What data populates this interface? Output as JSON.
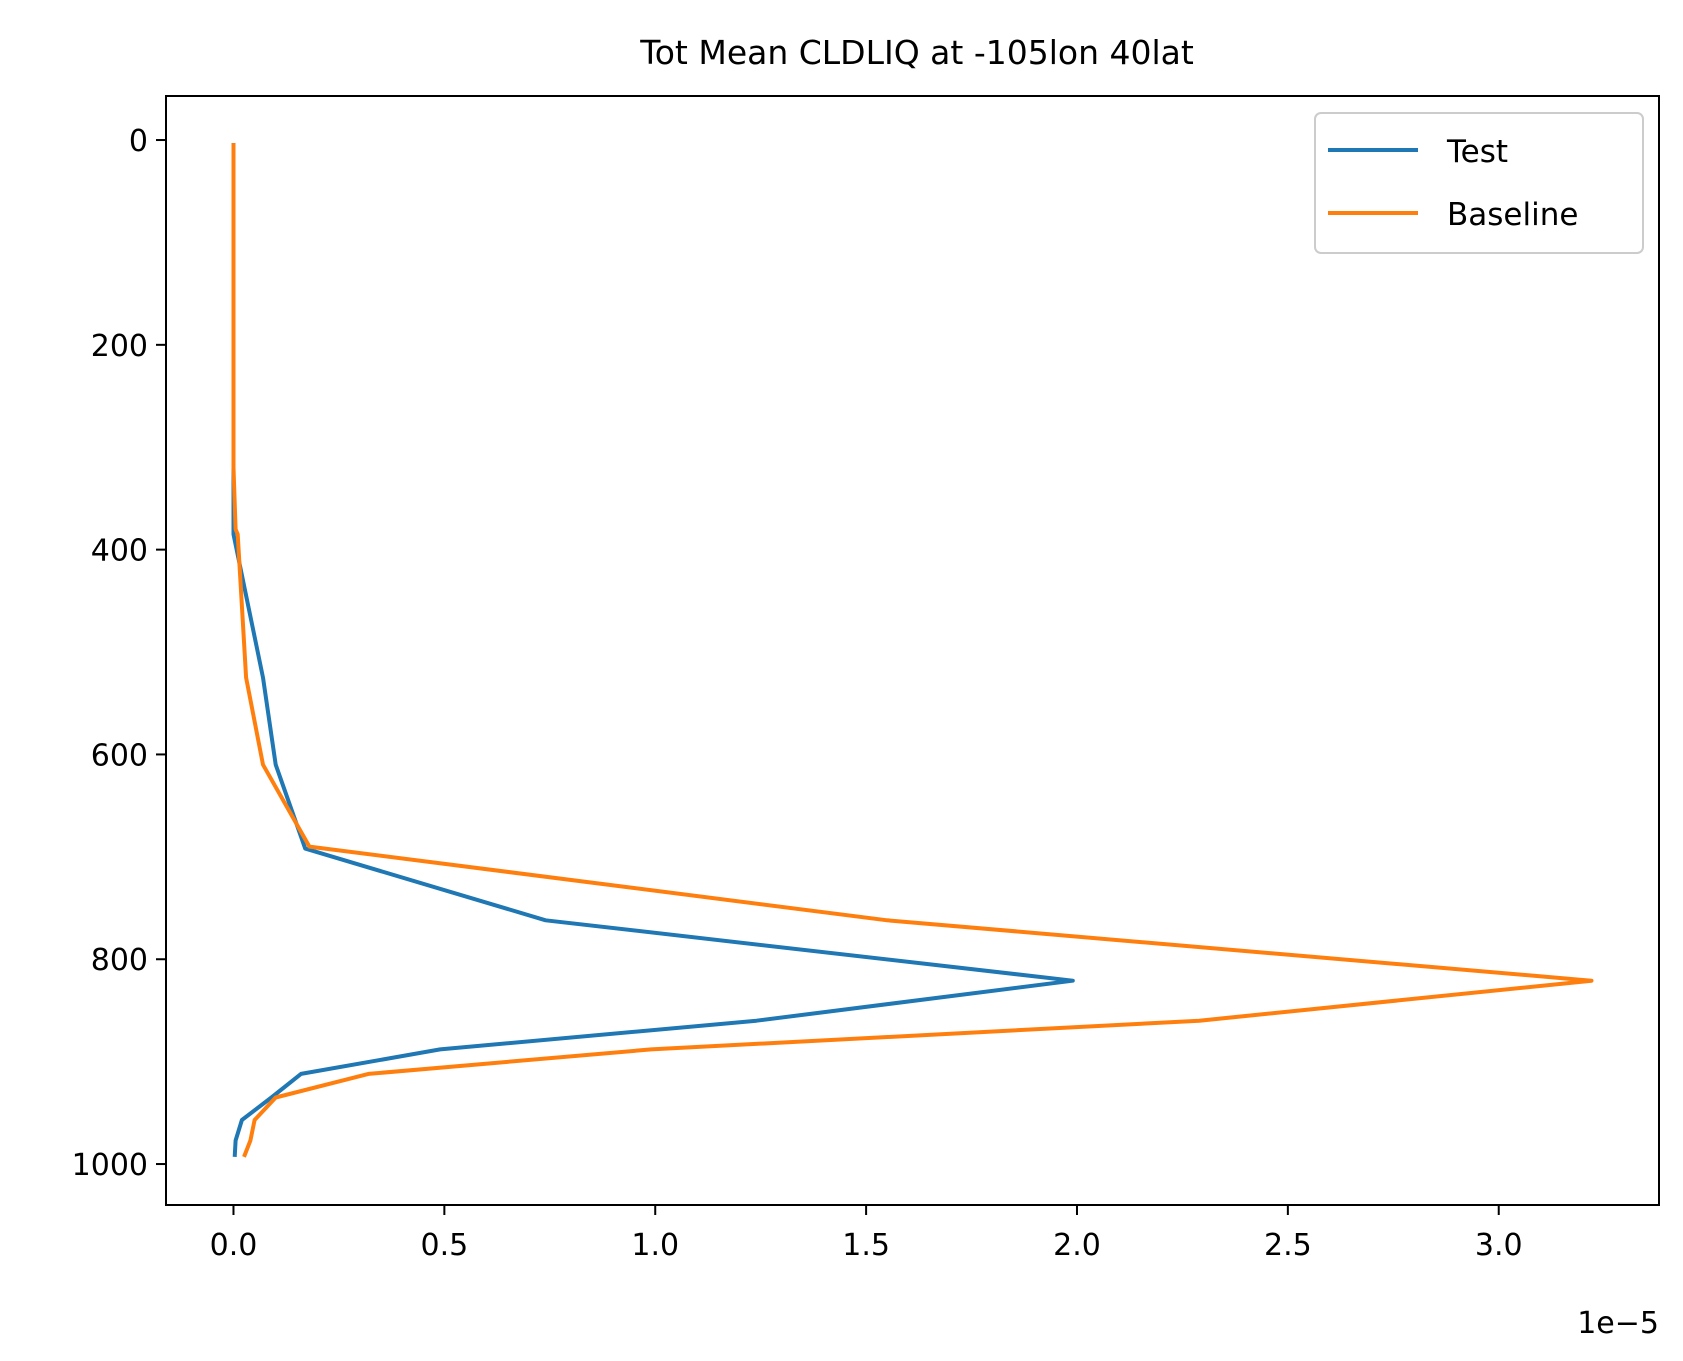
{
  "chart_data": {
    "type": "line",
    "title": "Tot Mean CLDLIQ at -105lon 40lat",
    "xlabel": "",
    "ylabel": "",
    "x_offset_label": "1e−5",
    "xlim": [
      -0.16,
      3.38
    ],
    "ylim": [
      1040,
      -43
    ],
    "y_inverted": true,
    "grid": false,
    "legend_position": "top-right",
    "x_ticks": [
      0.0,
      0.5,
      1.0,
      1.5,
      2.0,
      2.5,
      3.0
    ],
    "x_tick_labels": [
      "0.0",
      "0.5",
      "1.0",
      "1.5",
      "2.0",
      "2.5",
      "3.0"
    ],
    "y_ticks": [
      0,
      200,
      400,
      600,
      800,
      1000
    ],
    "y_tick_labels": [
      "0",
      "200",
      "400",
      "600",
      "800",
      "1000"
    ],
    "series": [
      {
        "name": "Test",
        "color": "#1f77b4",
        "x": [
          0.0,
          0.0,
          0.0,
          0.0,
          0.0,
          0.0,
          0.0,
          0.0,
          0.0,
          0.07,
          0.1,
          0.17,
          0.74,
          1.99,
          1.24,
          0.49,
          0.16,
          0.09,
          0.02,
          0.005,
          0.003
        ],
        "y": [
          3,
          50,
          100,
          150,
          200,
          250,
          320,
          380,
          385,
          525,
          610,
          692,
          762,
          821,
          860,
          888,
          912,
          935,
          957,
          977,
          993
        ]
      },
      {
        "name": "Baseline",
        "color": "#ff7f0e",
        "x": [
          0.0,
          0.0,
          0.0,
          0.0,
          0.0,
          0.0,
          0.0,
          0.005,
          0.01,
          0.03,
          0.07,
          0.18,
          1.55,
          3.22,
          2.29,
          0.99,
          0.32,
          0.1,
          0.05,
          0.04,
          0.025
        ],
        "y": [
          3,
          50,
          100,
          150,
          200,
          250,
          320,
          380,
          385,
          525,
          610,
          690,
          762,
          821,
          860,
          888,
          912,
          935,
          957,
          977,
          993
        ]
      }
    ]
  }
}
